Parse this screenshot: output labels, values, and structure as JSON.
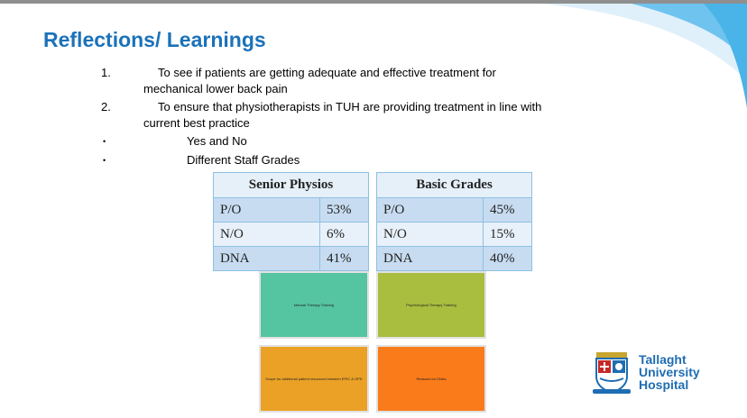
{
  "slide": {
    "title": "Reflections/ Learnings",
    "numbered": [
      {
        "marker": "1.",
        "line1": "To see if patients are getting adequate and effective treatment for",
        "line2": "mechanical lower back pain"
      },
      {
        "marker": "2.",
        "line1": "To ensure that physiotherapists in TUH are providing treatment in line with",
        "line2": "current best practice"
      }
    ],
    "bullets": [
      {
        "marker": "•",
        "text": "Yes and No"
      },
      {
        "marker": "•",
        "text": "Different Staff Grades"
      }
    ]
  },
  "tables": [
    {
      "header": "Senior Physios",
      "rows": [
        [
          "P/O",
          "53%"
        ],
        [
          "N/O",
          "6%"
        ],
        [
          "DNA",
          "41%"
        ]
      ]
    },
    {
      "header": "Basic Grades",
      "rows": [
        [
          "P/O",
          "45%"
        ],
        [
          "N/O",
          "15%"
        ],
        [
          "DNA",
          "40%"
        ]
      ]
    }
  ],
  "tiles": [
    {
      "label": "Manual Therapy Training",
      "color": "#55c4a0"
    },
    {
      "label": "Psychological Therapy Training",
      "color": "#a9bd3f"
    },
    {
      "label": "Scope for additional patient resources between EPIC & OPD",
      "color": "#eaa126"
    },
    {
      "label": "Reasons for DNAs",
      "color": "#fa7b1a"
    }
  ],
  "logo": {
    "line1": "Tallaght",
    "line2": "University",
    "line3": "Hospital",
    "brand_color": "#1f6db3"
  }
}
